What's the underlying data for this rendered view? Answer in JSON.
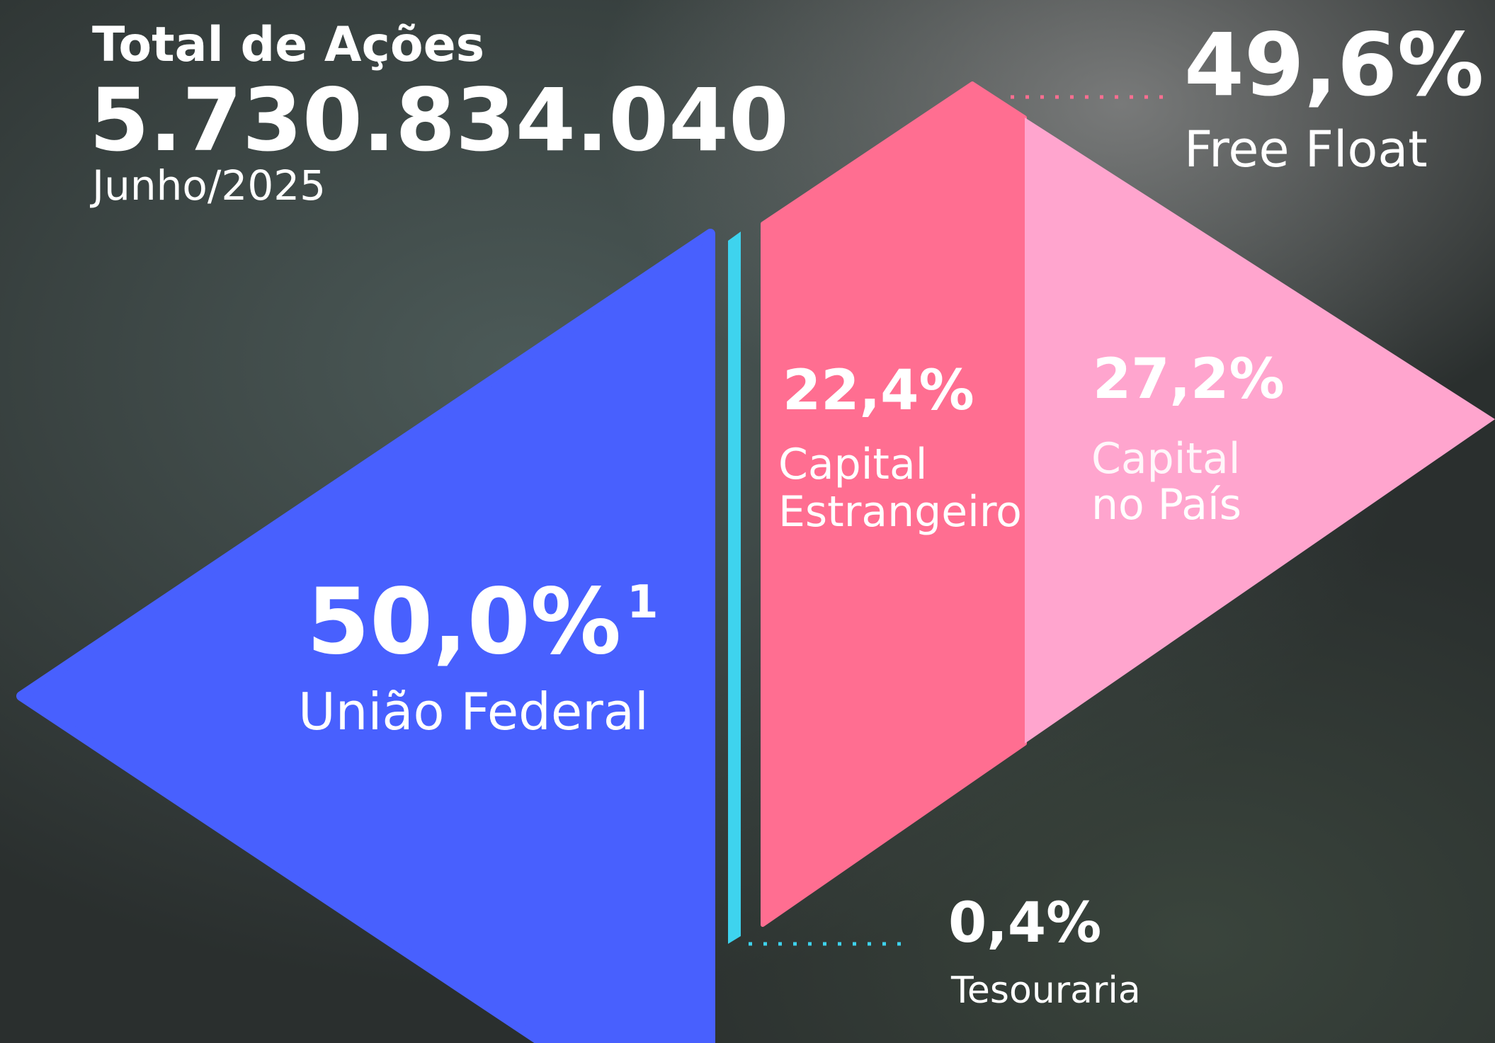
{
  "header": {
    "title": "Total de Ações",
    "total": "5.730.834.040",
    "date": "Junho/2025"
  },
  "free_float": {
    "value": "49,6%",
    "label": "Free Float"
  },
  "segments": [
    {
      "value": "50,0%",
      "footnote": "1",
      "label_lines": [
        "União Federal"
      ]
    },
    {
      "value": "22,4%",
      "label_lines": [
        "Capital",
        "Estrangeiro"
      ]
    },
    {
      "value": "27,2%",
      "label_lines": [
        "Capital",
        "no País"
      ]
    },
    {
      "value": "0,4%",
      "label_lines": [
        "Tesouraria"
      ]
    }
  ]
}
